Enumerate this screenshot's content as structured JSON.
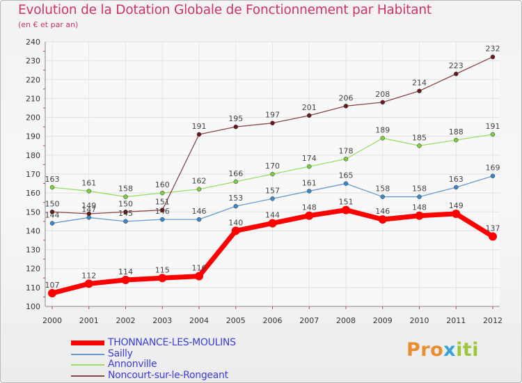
{
  "title": "Evolution de la Dotation Globale de Fonctionnement par Habitant",
  "subtitle": "(en € et par an)",
  "brand": {
    "part1": "Pro",
    "part2": "x",
    "part3": "iti"
  },
  "chart_data": {
    "type": "line",
    "title": "Evolution de la Dotation Globale de Fonctionnement par Habitant",
    "subtitle": "(en € et par an)",
    "xlabel": "",
    "ylabel": "",
    "x": [
      "2000",
      "2001",
      "2002",
      "2003",
      "2004",
      "2005",
      "2006",
      "2007",
      "2008",
      "2009",
      "2010",
      "2011",
      "2012"
    ],
    "ylim": [
      100,
      240
    ],
    "yticks": [
      100,
      110,
      120,
      130,
      140,
      150,
      160,
      170,
      180,
      190,
      200,
      210,
      220,
      230,
      240
    ],
    "grid": true,
    "legend_position": "bottom-left",
    "series": [
      {
        "name": "THONNANCE-LES-MOULINS",
        "color": "#ff0000",
        "thick": true,
        "values": [
          107,
          112,
          114,
          115,
          116,
          140,
          144,
          148,
          151,
          146,
          148,
          149,
          137
        ]
      },
      {
        "name": "Sailly",
        "color": "#6699cc",
        "marker": "#3a86c8",
        "values": [
          144,
          147,
          145,
          146,
          146,
          153,
          157,
          161,
          165,
          158,
          158,
          163,
          169
        ]
      },
      {
        "name": "Annonville",
        "color": "#99dd66",
        "marker": "#7ccc44",
        "values": [
          163,
          161,
          158,
          160,
          162,
          166,
          170,
          174,
          178,
          189,
          185,
          188,
          191
        ]
      },
      {
        "name": "Noncourt-sur-le-Rongeant",
        "color": "#884444",
        "marker": "#661a1a",
        "values": [
          150,
          149,
          150,
          151,
          191,
          195,
          197,
          201,
          206,
          208,
          214,
          223,
          232
        ]
      }
    ]
  }
}
